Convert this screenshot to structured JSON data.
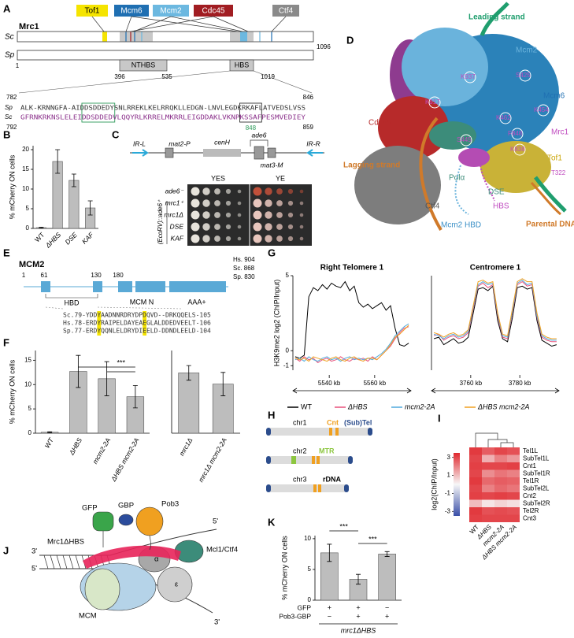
{
  "figure": {
    "panel_labels": [
      "A",
      "B",
      "C",
      "D",
      "E",
      "F",
      "G",
      "H",
      "I",
      "J",
      "K"
    ]
  },
  "panel_a": {
    "title": "Mrc1",
    "binders": [
      "Tof1",
      "Mcm6",
      "Mcm2",
      "Cdc45",
      "Ctf4"
    ],
    "species": [
      "Sc",
      "Sp"
    ],
    "sc_length": 1096,
    "sp_positions": [
      1,
      396,
      535,
      1019
    ],
    "regions": [
      "NTHBS",
      "HBS"
    ],
    "alignment": {
      "start_labels": [
        782,
        792
      ],
      "end_labels": [
        846,
        859
      ],
      "species": [
        "Sp",
        "Sc"
      ],
      "sequences": [
        "ALK-KRNNGFA-AIDDSDDEDYSNLRREKLKELRRQKLLEDGN-LNVLEGDKRKAFLATVEDSLVSS",
        "GFRNKRKNSLELEIDDSDDEDVLQQYRLKRRELMKRRLEIGDDAKLVKNPKSSAFPESMVEDIEY"
      ],
      "marked_position": 848
    }
  },
  "panel_c": {
    "construct": [
      "IR-L",
      "mat2-P",
      "cenH",
      "ade6",
      "mat3-M",
      "IR-R"
    ],
    "media": [
      "YES",
      "YE"
    ],
    "strains": [
      "ade6⁻",
      "mrc1⁺",
      "mrc1Δ",
      "DSE",
      "KAF"
    ],
    "strain_group": "(EcoRV)::ade6⁺"
  },
  "panel_d": {
    "labels": [
      "Leading strand",
      "Mcm2",
      "Mcm6",
      "Cdc45",
      "Mrc1",
      "Tof1",
      "Lagging strand",
      "Polα",
      "Ctf4",
      "DSE",
      "HBS",
      "Mcm2 HBD",
      "Parental DNA"
    ],
    "residues": [
      "K937",
      "S425",
      "K917",
      "K462",
      "K454",
      "S445",
      "F848",
      "K838",
      "T322"
    ]
  },
  "panel_e": {
    "title": "MCM2",
    "lengths": [
      "Hs. 904",
      "Sc. 868",
      "Sp. 830"
    ],
    "positions": [
      1,
      61,
      130,
      180
    ],
    "domains": [
      "HBD",
      "MCM N",
      "AAA+"
    ],
    "alignment": [
      "Sc.79-YDDYAADNNRDRYDPDQVD--DRKQQELS-105",
      "Hs.78-ERDYRAIPELDAYEAEGLALDDEDVEELT-106",
      "Sp.77-ERDYQQNLELDRYDIEELD-DDNDLEELD-104"
    ]
  },
  "panel_h": {
    "chromosomes": [
      "chr1",
      "chr2",
      "chr3"
    ],
    "features": [
      "Cnt",
      "(Sub)Tel",
      "MTR",
      "rDNA"
    ]
  },
  "panel_j": {
    "labels": [
      "GFP",
      "GBP",
      "Pob3",
      "5'",
      "3'",
      "5'",
      "3'",
      "Mrc1ΔHBS",
      "Mcl1/Ctf4",
      "α",
      "ε",
      "MCM"
    ]
  },
  "chart_data": [
    {
      "type": "bar",
      "ylabel": "% mCherry ON cells",
      "categories": [
        "WT",
        "ΔHBS",
        "DSE",
        "KAF"
      ],
      "values": [
        0.2,
        17,
        12.2,
        5.2
      ],
      "errors": [
        0.1,
        3,
        1.6,
        1.8
      ],
      "color": "#bdbdbd",
      "ylim": [
        0,
        21
      ],
      "yticks": [
        0,
        5,
        10,
        15,
        20
      ]
    },
    {
      "type": "bar",
      "ylabel": "% mCherry ON cells",
      "categories": [
        "WT",
        "ΔHBS",
        "mcm2-2A",
        "ΔHBS mcm2-2A"
      ],
      "values": [
        0.2,
        12.7,
        11.2,
        7.5
      ],
      "errors": [
        0.1,
        3.3,
        3.5,
        2.3
      ],
      "color": "#bdbdbd",
      "ylim": [
        0,
        17
      ],
      "yticks": [
        0,
        5,
        10,
        15
      ],
      "annotations": [
        "***"
      ]
    },
    {
      "type": "bar",
      "categories": [
        "mrc1Δ",
        "mrc1Δ mcm2-2A"
      ],
      "values": [
        12.4,
        10.1
      ],
      "errors": [
        1.5,
        2.4
      ],
      "color": "#bdbdbd",
      "ylim": [
        0,
        17
      ]
    },
    {
      "type": "line",
      "title": "Right Telomere 1",
      "ylabel": "H3K9me2 log2 (ChIP/Input)",
      "x": [
        5525,
        5527,
        5529,
        5531,
        5533,
        5535,
        5537,
        5539,
        5541,
        5543,
        5545,
        5547,
        5549,
        5551,
        5553,
        5555,
        5557,
        5559,
        5561,
        5563,
        5565,
        5567,
        5569,
        5571,
        5573,
        5575
      ],
      "series": [
        {
          "name": "WT",
          "color": "#000000",
          "values": [
            -0.4,
            -0.5,
            -0.3,
            3.6,
            4.2,
            4.0,
            4.4,
            4.1,
            4.5,
            4.3,
            4.2,
            4.6,
            4.0,
            4.3,
            3.2,
            2.9,
            3.1,
            2.8,
            3.0,
            3.2,
            2.7,
            3.0,
            1.5,
            0.4,
            0.3,
            0.5
          ]
        },
        {
          "name": "ΔHBS",
          "color": "#e8507a",
          "values": [
            -0.5,
            -0.7,
            -0.4,
            -0.6,
            -0.5,
            -0.8,
            -0.6,
            -0.5,
            -0.7,
            -0.6,
            -0.4,
            -0.6,
            -0.7,
            -0.5,
            -0.6,
            -0.5,
            -0.7,
            -0.4,
            -0.6,
            -0.3,
            0.0,
            0.3,
            0.8,
            1.2,
            1.5,
            1.6
          ]
        },
        {
          "name": "mcm2-2A",
          "color": "#4fa9dc",
          "values": [
            -0.6,
            -0.5,
            -0.7,
            -0.4,
            -0.6,
            -0.7,
            -0.5,
            -0.4,
            -0.6,
            -0.5,
            -0.7,
            -0.5,
            -0.4,
            -0.6,
            -0.5,
            -0.6,
            -0.5,
            -0.6,
            -0.4,
            -0.2,
            0.1,
            0.5,
            1.0,
            1.3,
            1.6,
            1.8
          ]
        },
        {
          "name": "ΔHBS mcm2-2A",
          "color": "#f0a020",
          "values": [
            -0.5,
            -0.6,
            -0.5,
            -0.7,
            -0.4,
            -0.5,
            -0.6,
            -0.7,
            -0.5,
            -0.4,
            -0.6,
            -0.7,
            -0.5,
            -0.4,
            -0.6,
            -0.7,
            -0.5,
            -0.5,
            -0.6,
            -0.3,
            0.0,
            0.4,
            0.9,
            1.1,
            1.4,
            1.7
          ]
        }
      ],
      "xlim": [
        5524,
        5576
      ],
      "xticks": [
        {
          "value": 5540,
          "label": "5540 kb"
        },
        {
          "value": 5560,
          "label": "5560 kb"
        }
      ],
      "ylim": [
        -1.3,
        5
      ],
      "yticks": [
        -1,
        0,
        5
      ]
    },
    {
      "type": "line",
      "title": "Centromere 1",
      "x": [
        3745,
        3747,
        3749,
        3751,
        3753,
        3755,
        3757,
        3759,
        3761,
        3763,
        3765,
        3767,
        3769,
        3771,
        3773,
        3775,
        3777,
        3779,
        3781,
        3783,
        3785,
        3787,
        3789,
        3791,
        3793,
        3795
      ],
      "series": [
        {
          "color": "#000000",
          "values": [
            0.8,
            0.9,
            0.4,
            0.6,
            0.8,
            0.5,
            0.6,
            0.9,
            2.5,
            4.1,
            4.2,
            4.0,
            4.3,
            2.0,
            0.8,
            0.6,
            2.2,
            4.2,
            4.3,
            4.1,
            4.2,
            2.0,
            0.7,
            0.5,
            0.3,
            0.4
          ]
        },
        {
          "color": "#e8507a",
          "values": [
            1.0,
            1.1,
            0.7,
            0.9,
            1.0,
            0.8,
            0.9,
            1.2,
            2.8,
            4.3,
            4.5,
            4.2,
            4.4,
            2.3,
            0.9,
            0.8,
            2.5,
            4.4,
            4.6,
            4.3,
            4.4,
            2.2,
            0.9,
            0.7,
            0.6,
            0.6
          ]
        },
        {
          "color": "#4fa9dc",
          "values": [
            1.1,
            1.0,
            0.8,
            1.0,
            1.1,
            0.9,
            1.0,
            1.3,
            2.9,
            4.4,
            4.6,
            4.4,
            4.5,
            2.4,
            1.0,
            0.9,
            2.6,
            4.5,
            4.7,
            4.4,
            4.5,
            2.3,
            1.0,
            0.8,
            0.7,
            0.7
          ]
        },
        {
          "color": "#f0a020",
          "values": [
            1.2,
            1.1,
            0.9,
            1.1,
            1.2,
            1.0,
            1.1,
            1.4,
            3.0,
            4.6,
            4.7,
            4.5,
            4.6,
            2.5,
            1.1,
            1.0,
            2.8,
            4.6,
            4.8,
            4.6,
            4.6,
            2.5,
            1.1,
            0.9,
            0.8,
            0.8
          ]
        }
      ],
      "xlim": [
        3744,
        3796
      ],
      "xticks": [
        {
          "value": 3760,
          "label": "3760 kb"
        },
        {
          "value": 3780,
          "label": "3780 kb"
        }
      ],
      "ylim": [
        -1.3,
        5
      ]
    },
    {
      "type": "heatmap",
      "colorbar_label": "log2(ChIP/Input)",
      "rows": [
        "Tel1L",
        "SubTel1L",
        "Cnt1",
        "SubTel1R",
        "Tel1R",
        "SubTel2L",
        "Cnt2",
        "SubTel2R",
        "Tel2R",
        "Cnt3"
      ],
      "columns": [
        "WT",
        "ΔHBS",
        "mcm2-2A",
        "ΔHBS mcm2-2A"
      ],
      "values": [
        [
          3.2,
          2.6,
          3.0,
          2.8
        ],
        [
          3.0,
          1.2,
          2.0,
          1.6
        ],
        [
          3.1,
          3.0,
          3.0,
          3.1
        ],
        [
          3.0,
          1.8,
          2.2,
          2.0
        ],
        [
          3.2,
          2.4,
          2.6,
          2.5
        ],
        [
          3.0,
          2.0,
          2.4,
          2.2
        ],
        [
          3.1,
          3.0,
          3.1,
          3.0
        ],
        [
          1.0,
          0.3,
          0.6,
          0.4
        ],
        [
          3.2,
          2.8,
          2.9,
          2.8
        ],
        [
          3.1,
          3.0,
          3.0,
          3.0
        ]
      ],
      "colormap": [
        "#3a4fa8",
        "#f7f7f7",
        "#e0282e"
      ],
      "zlim": [
        -3.5,
        3.5
      ],
      "zticks": [
        3,
        1,
        -1,
        -3
      ]
    },
    {
      "type": "bar",
      "ylabel": "% mCherry ON cells",
      "values": [
        7.7,
        3.4,
        7.5
      ],
      "errors": [
        1.4,
        0.8,
        0.4
      ],
      "color": "#bdbdbd",
      "ylim": [
        0,
        10.5
      ],
      "yticks": [
        0,
        5,
        10
      ],
      "annotations": [
        "***",
        "***"
      ],
      "conditions": [
        {
          "name": "GFP",
          "values": [
            "+",
            "+",
            "−"
          ]
        },
        {
          "name": "Pob3-GBP",
          "values": [
            "−",
            "+",
            "+"
          ]
        }
      ],
      "group_label": "mrc1ΔHBS"
    }
  ]
}
